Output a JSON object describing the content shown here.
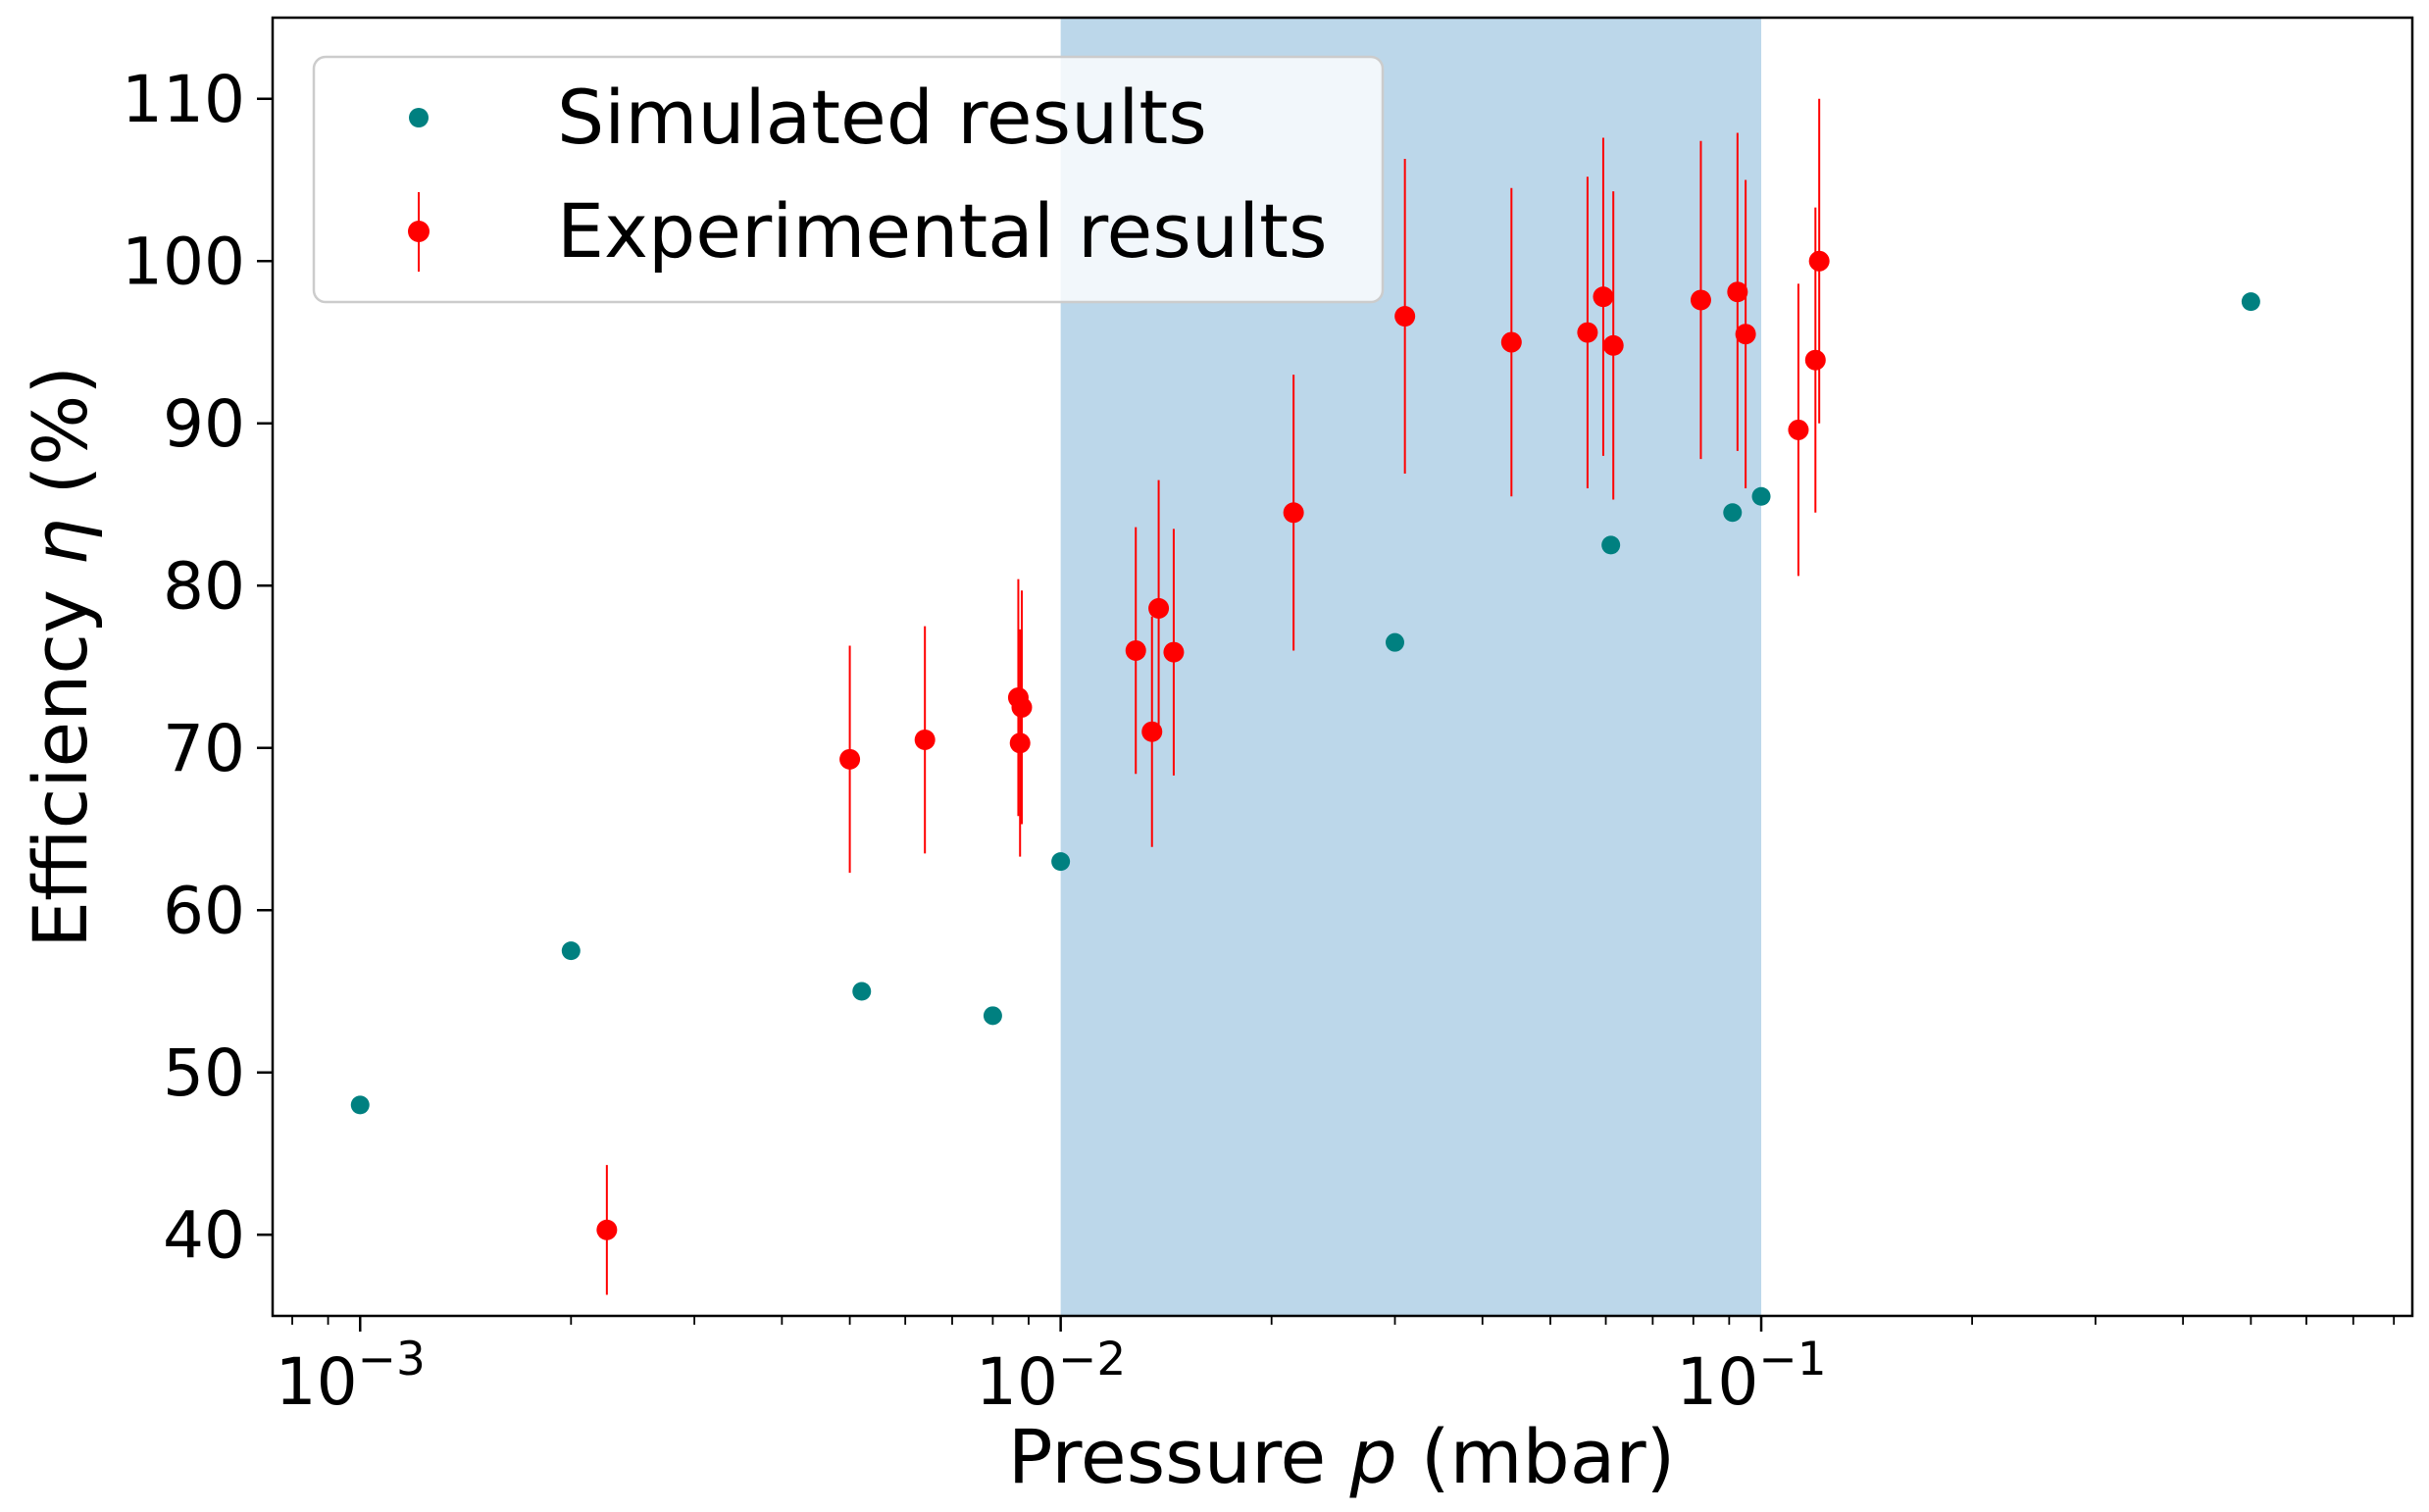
{
  "chart_data": {
    "type": "scatter",
    "xlabel": "Pressure p (mbar)",
    "xlabel_prefix": "Pressure ",
    "xlabel_var": "p",
    "xlabel_suffix": " (mbar)",
    "ylabel": "Efficiency η (%)",
    "ylabel_prefix": "Efficiency ",
    "ylabel_var": "η",
    "ylabel_suffix": " (%)",
    "xscale": "log",
    "xlim": [
      0.00075,
      0.85
    ],
    "ylim": [
      35,
      115
    ],
    "x_ticks": [
      {
        "value": 0.001,
        "base": "10",
        "exp": "−3"
      },
      {
        "value": 0.01,
        "base": "10",
        "exp": "−2"
      },
      {
        "value": 0.1,
        "base": "10",
        "exp": "−1"
      }
    ],
    "y_ticks": [
      40,
      50,
      60,
      70,
      80,
      90,
      100,
      110
    ],
    "shaded_region": {
      "x_range": [
        0.01,
        0.1
      ],
      "color": "#bcd7ea"
    },
    "grid": false,
    "legend_position": "top-left",
    "series": [
      {
        "name": "Simulated results",
        "color": "#008080",
        "marker": "circle",
        "points": [
          {
            "x": 0.001,
            "y": 48.0
          },
          {
            "x": 0.002,
            "y": 57.5
          },
          {
            "x": 0.0052,
            "y": 55.0
          },
          {
            "x": 0.008,
            "y": 53.5
          },
          {
            "x": 0.01,
            "y": 63.0
          },
          {
            "x": 0.03,
            "y": 76.5
          },
          {
            "x": 0.061,
            "y": 82.5
          },
          {
            "x": 0.091,
            "y": 84.5
          },
          {
            "x": 0.1,
            "y": 85.5
          },
          {
            "x": 0.5,
            "y": 97.5
          }
        ]
      },
      {
        "name": "Experimental results",
        "color": "#ff0000",
        "marker": "circle",
        "error_bars": true,
        "points": [
          {
            "x": 0.00225,
            "y": 40.3,
            "err": 4.0
          },
          {
            "x": 0.005,
            "y": 69.3,
            "err": 7.0
          },
          {
            "x": 0.0064,
            "y": 70.5,
            "err": 7.0
          },
          {
            "x": 0.0087,
            "y": 73.1,
            "err": 7.3
          },
          {
            "x": 0.00875,
            "y": 70.3,
            "err": 7.0
          },
          {
            "x": 0.0088,
            "y": 72.5,
            "err": 7.2
          },
          {
            "x": 0.0128,
            "y": 76.0,
            "err": 7.6
          },
          {
            "x": 0.0135,
            "y": 71.0,
            "err": 7.1
          },
          {
            "x": 0.0138,
            "y": 78.6,
            "err": 7.9
          },
          {
            "x": 0.0145,
            "y": 75.9,
            "err": 7.6
          },
          {
            "x": 0.0215,
            "y": 84.5,
            "err": 8.5
          },
          {
            "x": 0.031,
            "y": 96.6,
            "err": 9.7
          },
          {
            "x": 0.044,
            "y": 95.0,
            "err": 9.5
          },
          {
            "x": 0.0565,
            "y": 95.6,
            "err": 9.6
          },
          {
            "x": 0.0595,
            "y": 97.8,
            "err": 9.8
          },
          {
            "x": 0.0615,
            "y": 94.8,
            "err": 9.5
          },
          {
            "x": 0.082,
            "y": 97.6,
            "err": 9.8
          },
          {
            "x": 0.0925,
            "y": 98.1,
            "err": 9.8
          },
          {
            "x": 0.095,
            "y": 95.5,
            "err": 9.5
          },
          {
            "x": 0.113,
            "y": 89.6,
            "err": 9.0
          },
          {
            "x": 0.1195,
            "y": 93.9,
            "err": 9.4
          },
          {
            "x": 0.121,
            "y": 100.0,
            "err": 10.0
          }
        ]
      }
    ]
  }
}
